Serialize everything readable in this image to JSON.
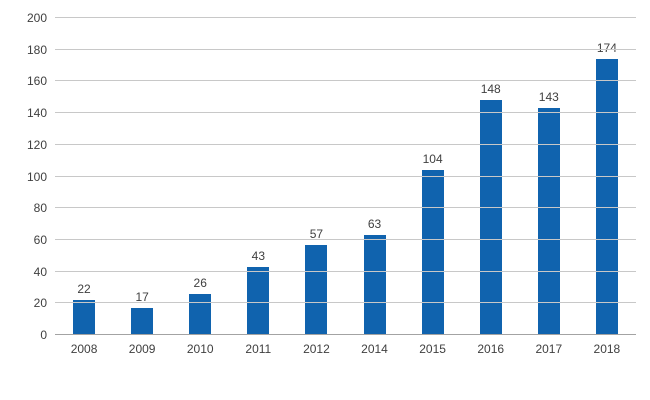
{
  "chart_data": {
    "type": "bar",
    "title": "",
    "xlabel": "",
    "ylabel": "",
    "categories": [
      "2008",
      "2009",
      "2010",
      "2011",
      "2012",
      "2014",
      "2015",
      "2016",
      "2017",
      "2018"
    ],
    "values": [
      22,
      17,
      26,
      43,
      57,
      63,
      104,
      148,
      143,
      174
    ],
    "data_labels": [
      "22",
      "17",
      "26",
      "43",
      "57",
      "63",
      "104",
      "148",
      "143",
      "174"
    ],
    "ylim": [
      0,
      200
    ],
    "yticks": [
      0,
      20,
      40,
      60,
      80,
      100,
      120,
      140,
      160,
      180,
      200
    ],
    "grid": true,
    "legend": false,
    "colors": {
      "bar": "#1063ae",
      "gridline": "#c8c8c8",
      "axis_line": "#a3a3a3",
      "label_text": "#404040",
      "background": "#ffffff"
    }
  }
}
